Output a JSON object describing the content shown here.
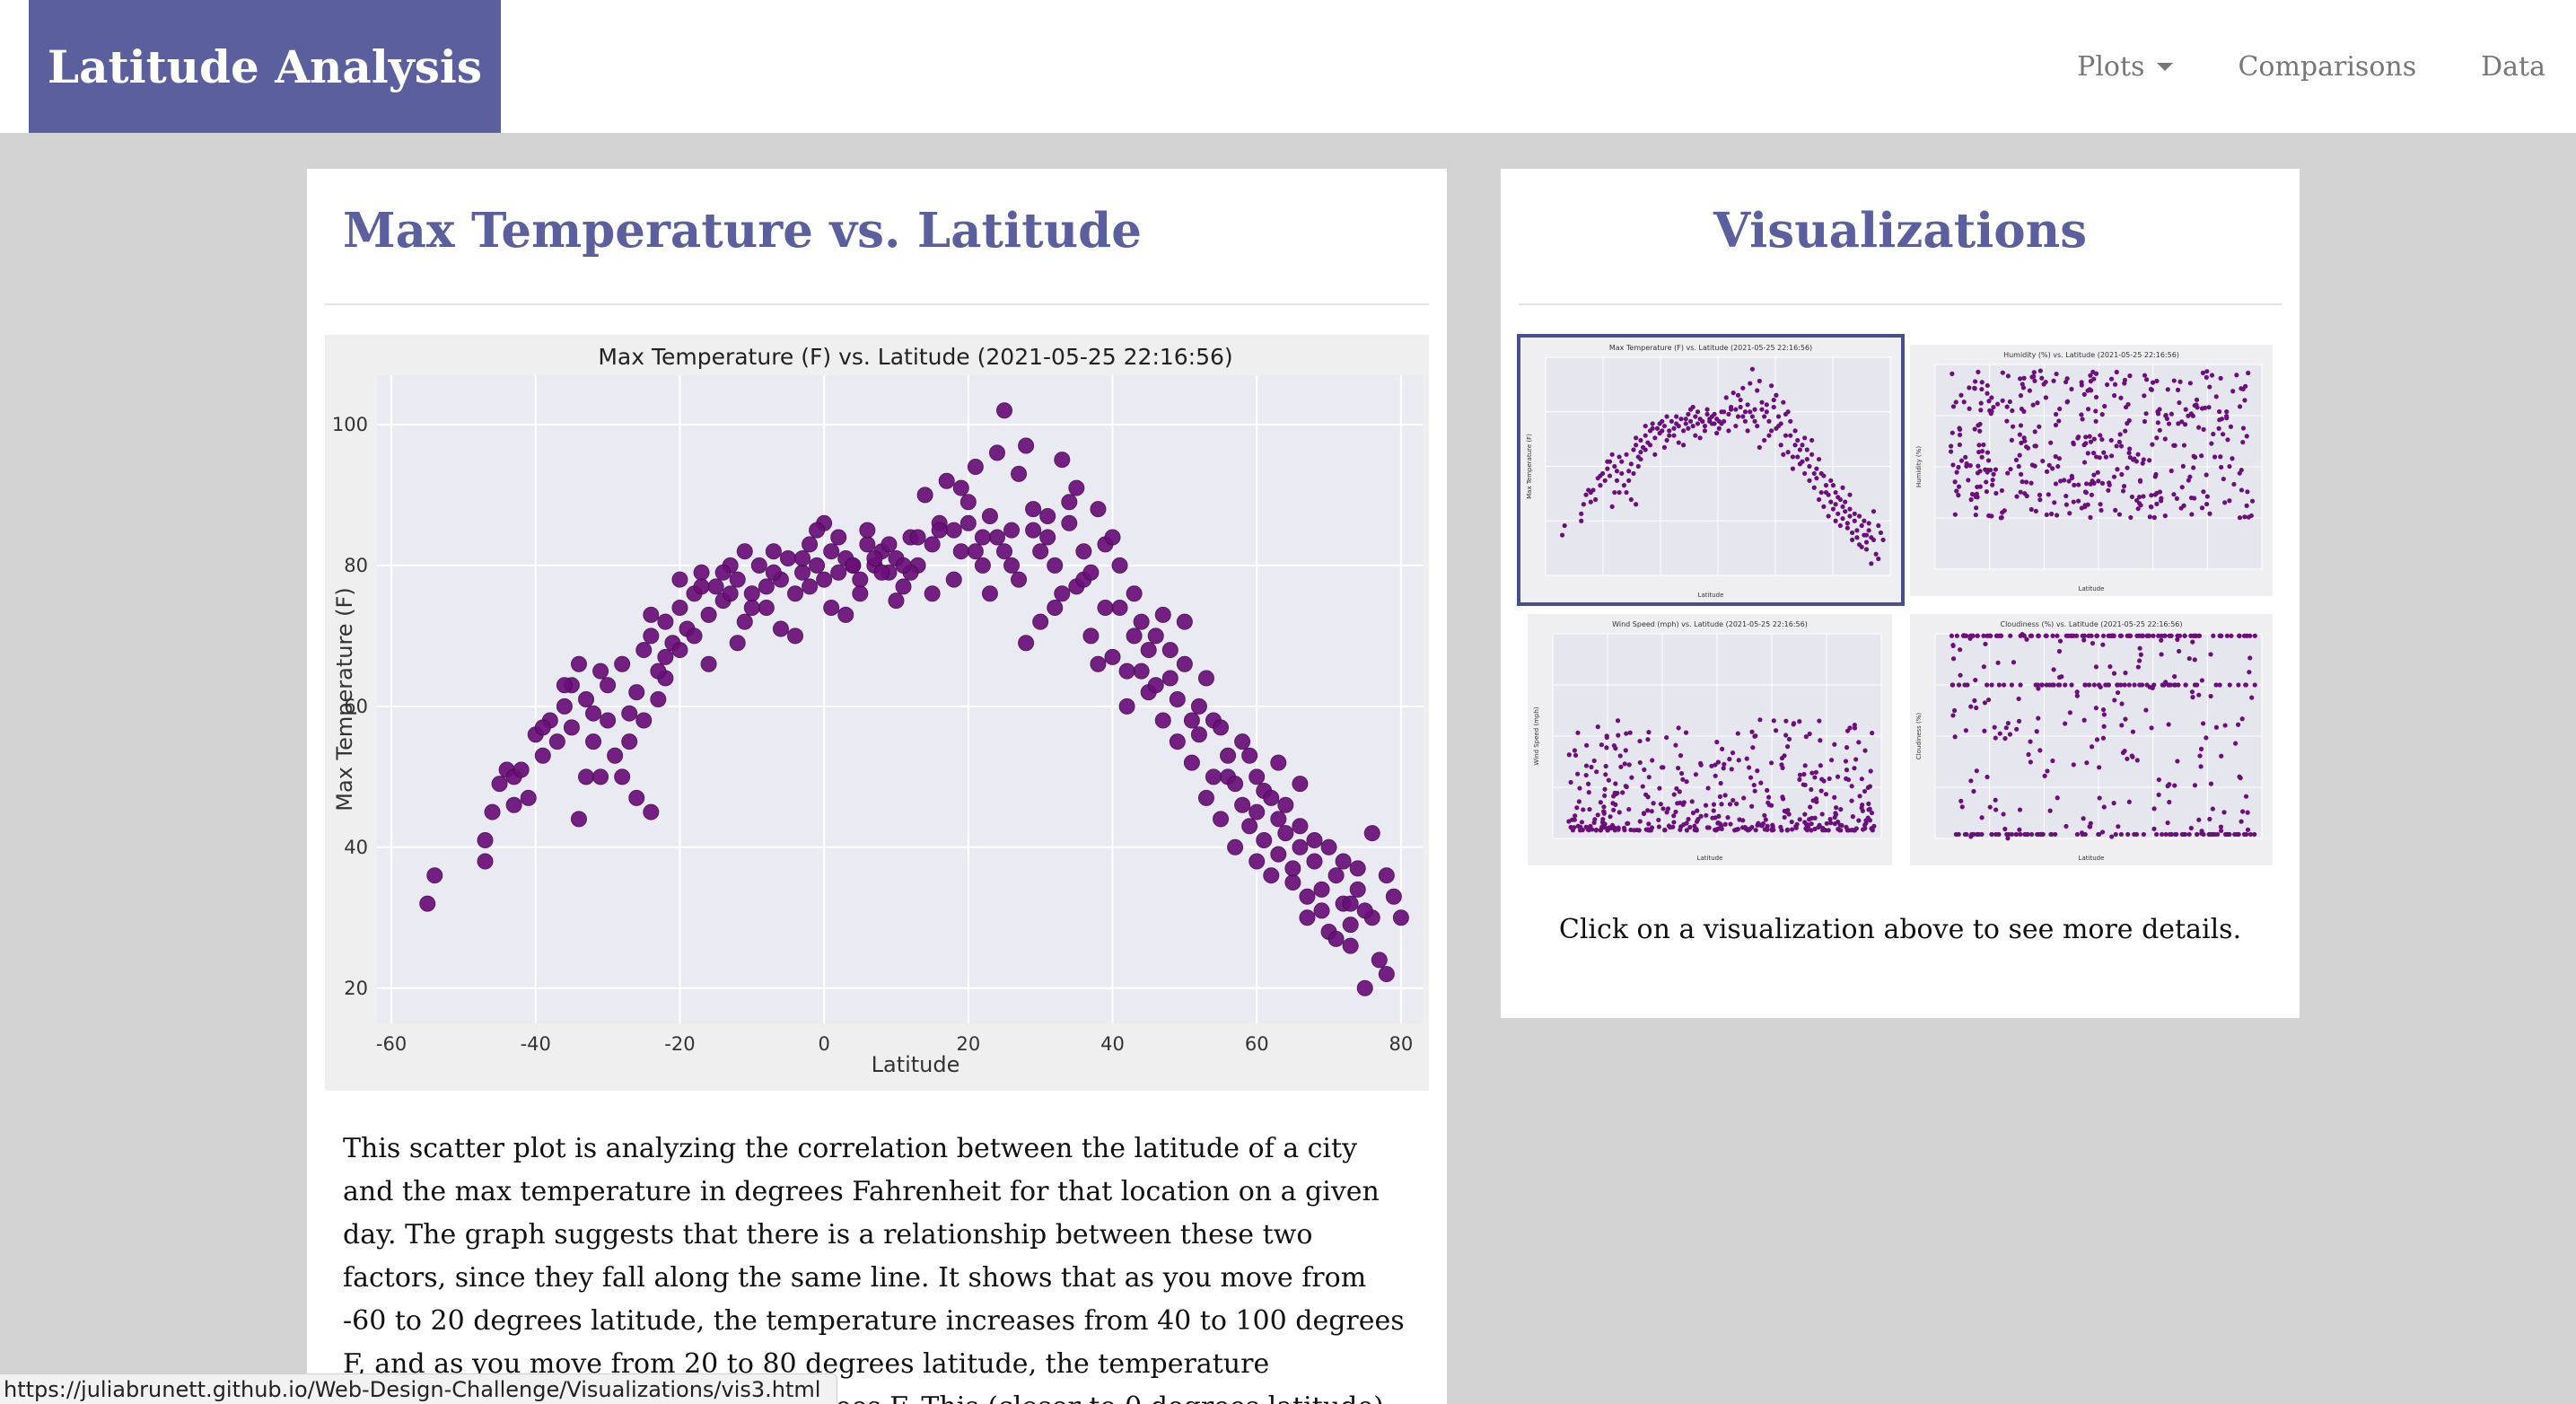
{
  "navbar": {
    "brand": "Latitude Analysis",
    "links": [
      {
        "label": "Plots",
        "dropdown": true
      },
      {
        "label": "Comparisons"
      },
      {
        "label": "Data"
      }
    ],
    "brand_color": "#5b5f9e"
  },
  "main": {
    "title": "Max Temperature vs. Latitude",
    "description": "This scatter plot is analyzing the correlation between the latitude of a city and the max temperature in degrees Fahrenheit for that location on a given day. The graph suggests that there is a relationship between these two factors, since they fall along the same line. It shows that as you move from -60 to 20 degrees latitude, the temperature increases from 40 to 100 degrees F, and as you move from 20 to 80 degrees latitude, the temperature decreases from 100 to below 0 degrees F. This (closer to 0 degrees latitude) is where the temperature is the"
  },
  "side": {
    "title": "Visualizations",
    "caption": "Click on a visualization above to see more details.",
    "thumbnails": [
      {
        "title": "Max Temperature (F) vs. Latitude (2021-05-25 22:16:56)",
        "ylabel": "Max Temperature (F)",
        "xlabel": "Latitude",
        "selected": true
      },
      {
        "title": "Humidity (%) vs. Latitude (2021-05-25 22:16:56)",
        "ylabel": "Humidity (%)",
        "xlabel": "Latitude",
        "selected": false
      },
      {
        "title": "Wind Speed (mph) vs. Latitude (2021-05-25 22:16:56)",
        "ylabel": "Wind Speed (mph)",
        "xlabel": "Latitude",
        "selected": false
      },
      {
        "title": "Cloudiness (%) vs. Latitude (2021-05-25 22:16:56)",
        "ylabel": "Cloudiness (%)",
        "xlabel": "Latitude",
        "selected": false
      }
    ]
  },
  "status_bar": {
    "url": "https://juliabrunett.github.io/Web-Design-Challenge/Visualizations/vis3.html"
  },
  "chart_data": {
    "type": "scatter",
    "title": "Max Temperature (F) vs. Latitude (2021-05-25 22:16:56)",
    "xlabel": "Latitude",
    "ylabel": "Max Temperature (F)",
    "xlim": [
      -62,
      83
    ],
    "ylim": [
      15,
      107
    ],
    "xticks": [
      -60,
      -40,
      -20,
      0,
      20,
      40,
      60,
      80
    ],
    "yticks": [
      20,
      40,
      60,
      80,
      100
    ],
    "grid": true,
    "marker_color": "#6b0f7a",
    "points": [
      [
        -55,
        32
      ],
      [
        -54,
        36
      ],
      [
        -47,
        38
      ],
      [
        -47,
        41
      ],
      [
        -46,
        45
      ],
      [
        -45,
        49
      ],
      [
        -44,
        51
      ],
      [
        -43,
        50
      ],
      [
        -42,
        51
      ],
      [
        -41,
        47
      ],
      [
        -40,
        56
      ],
      [
        -39,
        53
      ],
      [
        -38,
        58
      ],
      [
        -37,
        55
      ],
      [
        -36,
        60
      ],
      [
        -35,
        57
      ],
      [
        -35,
        63
      ],
      [
        -34,
        66
      ],
      [
        -34,
        44
      ],
      [
        -33,
        50
      ],
      [
        -33,
        61
      ],
      [
        -32,
        59
      ],
      [
        -32,
        55
      ],
      [
        -31,
        50
      ],
      [
        -30,
        58
      ],
      [
        -29,
        53
      ],
      [
        -28,
        50
      ],
      [
        -27,
        59
      ],
      [
        -26,
        62
      ],
      [
        -26,
        47
      ],
      [
        -25,
        68
      ],
      [
        -24,
        70
      ],
      [
        -24,
        45
      ],
      [
        -23,
        61
      ],
      [
        -22,
        64
      ],
      [
        -22,
        72
      ],
      [
        -21,
        69
      ],
      [
        -20,
        74
      ],
      [
        -20,
        68
      ],
      [
        -19,
        71
      ],
      [
        -18,
        76
      ],
      [
        -17,
        79
      ],
      [
        -16,
        73
      ],
      [
        -15,
        77
      ],
      [
        -14,
        75
      ],
      [
        -13,
        80
      ],
      [
        -12,
        78
      ],
      [
        -11,
        72
      ],
      [
        -10,
        76
      ],
      [
        -9,
        80
      ],
      [
        -8,
        74
      ],
      [
        -7,
        82
      ],
      [
        -6,
        78
      ],
      [
        -5,
        81
      ],
      [
        -4,
        76
      ],
      [
        -3,
        79
      ],
      [
        -2,
        83
      ],
      [
        -1,
        80
      ],
      [
        0,
        78
      ],
      [
        0,
        86
      ],
      [
        1,
        82
      ],
      [
        2,
        79
      ],
      [
        3,
        81
      ],
      [
        4,
        80
      ],
      [
        5,
        78
      ],
      [
        6,
        83
      ],
      [
        7,
        80
      ],
      [
        8,
        82
      ],
      [
        9,
        79
      ],
      [
        10,
        81
      ],
      [
        11,
        77
      ],
      [
        12,
        84
      ],
      [
        13,
        80
      ],
      [
        14,
        90
      ],
      [
        15,
        76
      ],
      [
        16,
        86
      ],
      [
        17,
        92
      ],
      [
        18,
        85
      ],
      [
        19,
        82
      ],
      [
        20,
        89
      ],
      [
        21,
        94
      ],
      [
        22,
        80
      ],
      [
        23,
        87
      ],
      [
        24,
        96
      ],
      [
        25,
        102
      ],
      [
        26,
        85
      ],
      [
        27,
        78
      ],
      [
        28,
        97
      ],
      [
        29,
        88
      ],
      [
        30,
        72
      ],
      [
        31,
        84
      ],
      [
        32,
        80
      ],
      [
        33,
        95
      ],
      [
        34,
        86
      ],
      [
        35,
        77
      ],
      [
        36,
        82
      ],
      [
        37,
        70
      ],
      [
        38,
        88
      ],
      [
        39,
        74
      ],
      [
        40,
        67
      ],
      [
        41,
        80
      ],
      [
        42,
        60
      ],
      [
        43,
        76
      ],
      [
        44,
        65
      ],
      [
        45,
        62
      ],
      [
        46,
        70
      ],
      [
        47,
        58
      ],
      [
        48,
        64
      ],
      [
        49,
        55
      ],
      [
        50,
        72
      ],
      [
        51,
        52
      ],
      [
        52,
        60
      ],
      [
        53,
        47
      ],
      [
        54,
        58
      ],
      [
        55,
        44
      ],
      [
        56,
        50
      ],
      [
        57,
        40
      ],
      [
        58,
        46
      ],
      [
        59,
        53
      ],
      [
        60,
        38
      ],
      [
        61,
        48
      ],
      [
        62,
        36
      ],
      [
        63,
        44
      ],
      [
        64,
        42
      ],
      [
        65,
        35
      ],
      [
        66,
        40
      ],
      [
        67,
        30
      ],
      [
        68,
        38
      ],
      [
        69,
        34
      ],
      [
        70,
        28
      ],
      [
        71,
        36
      ],
      [
        72,
        32
      ],
      [
        73,
        26
      ],
      [
        74,
        34
      ],
      [
        75,
        20
      ],
      [
        76,
        30
      ],
      [
        77,
        24
      ],
      [
        78,
        22
      ],
      [
        79,
        33
      ],
      [
        80,
        30
      ],
      [
        -30,
        63
      ],
      [
        -28,
        66
      ],
      [
        -25,
        58
      ],
      [
        -24,
        73
      ],
      [
        -22,
        67
      ],
      [
        -18,
        70
      ],
      [
        -16,
        66
      ],
      [
        -14,
        79
      ],
      [
        -12,
        69
      ],
      [
        -10,
        74
      ],
      [
        -8,
        77
      ],
      [
        -6,
        71
      ],
      [
        -4,
        70
      ],
      [
        -2,
        77
      ],
      [
        1,
        74
      ],
      [
        3,
        73
      ],
      [
        5,
        76
      ],
      [
        6,
        85
      ],
      [
        8,
        79
      ],
      [
        10,
        75
      ],
      [
        12,
        79
      ],
      [
        15,
        83
      ],
      [
        18,
        78
      ],
      [
        19,
        91
      ],
      [
        21,
        82
      ],
      [
        23,
        76
      ],
      [
        24,
        84
      ],
      [
        26,
        80
      ],
      [
        28,
        69
      ],
      [
        30,
        82
      ],
      [
        32,
        74
      ],
      [
        34,
        89
      ],
      [
        36,
        78
      ],
      [
        38,
        66
      ],
      [
        39,
        83
      ],
      [
        41,
        74
      ],
      [
        42,
        65
      ],
      [
        43,
        70
      ],
      [
        45,
        68
      ],
      [
        46,
        63
      ],
      [
        47,
        73
      ],
      [
        49,
        61
      ],
      [
        50,
        66
      ],
      [
        52,
        56
      ],
      [
        53,
        64
      ],
      [
        54,
        50
      ],
      [
        55,
        57
      ],
      [
        57,
        49
      ],
      [
        58,
        55
      ],
      [
        59,
        43
      ],
      [
        60,
        50
      ],
      [
        61,
        41
      ],
      [
        62,
        47
      ],
      [
        63,
        39
      ],
      [
        64,
        46
      ],
      [
        65,
        37
      ],
      [
        66,
        43
      ],
      [
        67,
        33
      ],
      [
        68,
        41
      ],
      [
        69,
        31
      ],
      [
        71,
        27
      ],
      [
        72,
        38
      ],
      [
        73,
        29
      ],
      [
        74,
        37
      ],
      [
        75,
        31
      ],
      [
        -43,
        46
      ],
      [
        -39,
        57
      ],
      [
        -36,
        63
      ],
      [
        -31,
        65
      ],
      [
        -27,
        55
      ],
      [
        -23,
        65
      ],
      [
        -20,
        78
      ],
      [
        -17,
        77
      ],
      [
        -13,
        76
      ],
      [
        -11,
        82
      ],
      [
        -7,
        79
      ],
      [
        -3,
        81
      ],
      [
        -1,
        85
      ],
      [
        2,
        84
      ],
      [
        4,
        80
      ],
      [
        7,
        81
      ],
      [
        9,
        83
      ],
      [
        11,
        80
      ],
      [
        13,
        84
      ],
      [
        16,
        85
      ],
      [
        20,
        86
      ],
      [
        22,
        84
      ],
      [
        25,
        82
      ],
      [
        27,
        93
      ],
      [
        29,
        85
      ],
      [
        31,
        87
      ],
      [
        33,
        76
      ],
      [
        35,
        91
      ],
      [
        37,
        79
      ],
      [
        40,
        84
      ],
      [
        44,
        72
      ],
      [
        48,
        68
      ],
      [
        51,
        58
      ],
      [
        56,
        53
      ],
      [
        60,
        45
      ],
      [
        63,
        52
      ],
      [
        66,
        49
      ],
      [
        70,
        40
      ],
      [
        73,
        32
      ],
      [
        76,
        42
      ],
      [
        78,
        36
      ]
    ]
  }
}
